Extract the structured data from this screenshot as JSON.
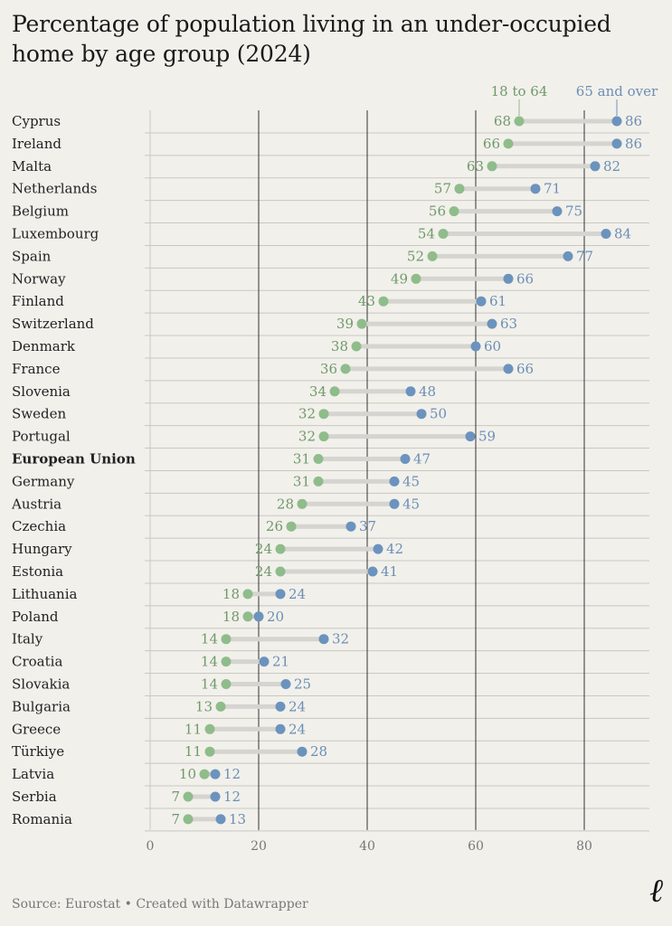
{
  "title": "Percentage of population living in an under-occupied home by age group (2024)",
  "source": "Source: Eurostat • Created with Datawrapper",
  "logo": "ℓ",
  "colors": {
    "young": "#8fbc8b",
    "old": "#6b93bd",
    "young_text": "#6f9a6b",
    "old_text": "#6b8fb5",
    "connector": "#d6d4d0",
    "grid": "#c9c7c2",
    "grid_major": "#333333"
  },
  "chart_data": {
    "type": "dot-range",
    "series": [
      {
        "name": "18 to 64"
      },
      {
        "name": "65 and over"
      }
    ],
    "xlim": [
      0,
      92
    ],
    "xticks": [
      0,
      20,
      40,
      60,
      80
    ],
    "grid": true,
    "highlight": "European Union",
    "rows": [
      {
        "label": "Cyprus",
        "young": 68,
        "old": 86
      },
      {
        "label": "Ireland",
        "young": 66,
        "old": 86
      },
      {
        "label": "Malta",
        "young": 63,
        "old": 82
      },
      {
        "label": "Netherlands",
        "young": 57,
        "old": 71
      },
      {
        "label": "Belgium",
        "young": 56,
        "old": 75
      },
      {
        "label": "Luxembourg",
        "young": 54,
        "old": 84
      },
      {
        "label": "Spain",
        "young": 52,
        "old": 77
      },
      {
        "label": "Norway",
        "young": 49,
        "old": 66
      },
      {
        "label": "Finland",
        "young": 43,
        "old": 61
      },
      {
        "label": "Switzerland",
        "young": 39,
        "old": 63
      },
      {
        "label": "Denmark",
        "young": 38,
        "old": 60
      },
      {
        "label": "France",
        "young": 36,
        "old": 66
      },
      {
        "label": "Slovenia",
        "young": 34,
        "old": 48
      },
      {
        "label": "Sweden",
        "young": 32,
        "old": 50
      },
      {
        "label": "Portugal",
        "young": 32,
        "old": 59
      },
      {
        "label": "European Union",
        "young": 31,
        "old": 47
      },
      {
        "label": "Germany",
        "young": 31,
        "old": 45
      },
      {
        "label": "Austria",
        "young": 28,
        "old": 45
      },
      {
        "label": "Czechia",
        "young": 26,
        "old": 37
      },
      {
        "label": "Hungary",
        "young": 24,
        "old": 42
      },
      {
        "label": "Estonia",
        "young": 24,
        "old": 41
      },
      {
        "label": "Lithuania",
        "young": 18,
        "old": 24
      },
      {
        "label": "Poland",
        "young": 18,
        "old": 20
      },
      {
        "label": "Italy",
        "young": 14,
        "old": 32
      },
      {
        "label": "Croatia",
        "young": 14,
        "old": 21
      },
      {
        "label": "Slovakia",
        "young": 14,
        "old": 25
      },
      {
        "label": "Bulgaria",
        "young": 13,
        "old": 24
      },
      {
        "label": "Greece",
        "young": 11,
        "old": 24
      },
      {
        "label": "Türkiye",
        "young": 11,
        "old": 28
      },
      {
        "label": "Latvia",
        "young": 10,
        "old": 12
      },
      {
        "label": "Serbia",
        "young": 7,
        "old": 12
      },
      {
        "label": "Romania",
        "young": 7,
        "old": 13
      }
    ]
  }
}
